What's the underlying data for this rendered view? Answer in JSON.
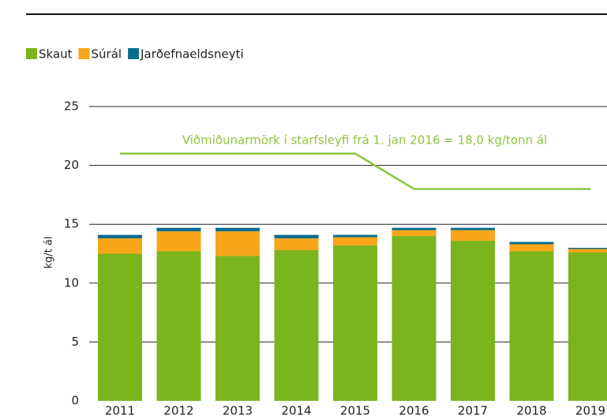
{
  "chart_data": {
    "type": "stacked_bar",
    "categories": [
      "2011",
      "2012",
      "2013",
      "2014",
      "2015",
      "2016",
      "2017",
      "2018",
      "2019"
    ],
    "series": [
      {
        "name": "Skaut",
        "color": "#7ab51d",
        "values": [
          12.5,
          12.7,
          12.3,
          12.8,
          13.2,
          14.0,
          13.6,
          12.7,
          12.6
        ]
      },
      {
        "name": "Súrál",
        "color": "#f9a51a",
        "values": [
          1.3,
          1.7,
          2.1,
          1.0,
          0.7,
          0.5,
          0.9,
          0.6,
          0.3
        ]
      },
      {
        "name": "Jarðefnaeldsneyti",
        "color": "#0a6e8c",
        "values": [
          0.3,
          0.3,
          0.3,
          0.3,
          0.2,
          0.2,
          0.2,
          0.2,
          0.1
        ]
      }
    ],
    "reference_line": {
      "label": "Viðmiðunarmörk í starfsleyfi frá 1. jan 2016  = 18,0 kg/tonn ál",
      "color": "#8cc63f",
      "values": [
        21,
        21,
        21,
        21,
        21,
        18,
        18,
        18,
        18
      ]
    },
    "ylabel": "kg/t ál",
    "ylim": [
      0,
      25
    ],
    "yticks": [
      0,
      5,
      10,
      15,
      20,
      25
    ],
    "grid": true,
    "legend": "top-left"
  }
}
